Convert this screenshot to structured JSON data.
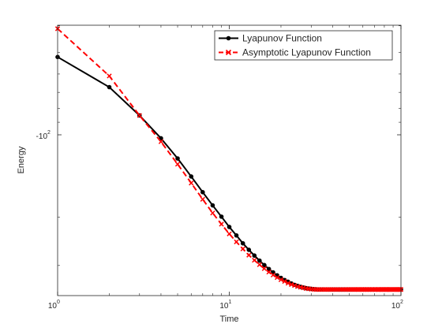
{
  "chart_data": {
    "type": "line",
    "xlabel": "Time",
    "ylabel": "Energy",
    "x_scale": "log",
    "y_scale": "log-negative",
    "xlim": [
      1,
      100
    ],
    "x_ticks": [
      {
        "value": 1,
        "base": "10",
        "exp": "0"
      },
      {
        "value": 10,
        "base": "10",
        "exp": "1"
      },
      {
        "value": 100,
        "base": "10",
        "exp": "2"
      }
    ],
    "y_ticks": [
      {
        "value": -100,
        "base": "-10",
        "exp": "2"
      }
    ],
    "legend_position": "top-right",
    "grid": false,
    "series": [
      {
        "name": "Lyapunov Function",
        "color": "#000000",
        "line_style": "solid",
        "marker": "dot",
        "x": [
          1,
          2,
          3,
          4,
          5,
          6,
          7,
          8,
          9,
          10,
          11,
          12,
          13,
          14,
          15,
          16,
          17,
          18,
          19,
          20,
          21,
          22,
          23,
          24,
          25,
          26,
          27,
          28,
          29,
          30,
          31,
          32,
          33,
          34,
          35,
          36,
          37,
          38,
          39,
          40,
          41,
          42,
          43,
          44,
          45,
          46,
          47,
          48,
          49,
          50,
          51,
          52,
          53,
          54,
          55,
          56,
          57,
          58,
          59,
          60,
          61,
          62,
          63,
          64,
          65,
          66,
          67,
          68,
          69,
          70,
          71,
          72,
          73,
          74,
          75,
          76,
          77,
          78,
          79,
          80,
          81,
          82,
          83,
          84,
          85,
          86,
          87,
          88,
          89,
          90,
          91,
          92,
          93,
          94,
          95,
          96,
          97,
          98,
          99,
          100
        ],
        "y": [
          -52,
          -67,
          -85,
          -103,
          -122,
          -142,
          -162,
          -181,
          -199,
          -217,
          -233,
          -249,
          -263,
          -276,
          -288,
          -299,
          -309,
          -318,
          -326,
          -333,
          -339,
          -344,
          -349,
          -353,
          -356,
          -359,
          -361,
          -363,
          -364,
          -365,
          -366,
          -366.5,
          -367,
          -367,
          -367,
          -367,
          -367,
          -367,
          -367,
          -367,
          -367,
          -367,
          -367,
          -367,
          -367,
          -367,
          -367,
          -367,
          -367,
          -367,
          -367,
          -367,
          -367,
          -367,
          -367,
          -367,
          -367,
          -367,
          -367,
          -367,
          -367,
          -367,
          -367,
          -367,
          -367,
          -367,
          -367,
          -367,
          -367,
          -367,
          -367,
          -367,
          -367,
          -367,
          -367,
          -367,
          -367,
          -367,
          -367,
          -367,
          -367,
          -367,
          -367,
          -367,
          -367,
          -367,
          -367,
          -367,
          -367,
          -367,
          -367,
          -367,
          -367,
          -367,
          -367,
          -367,
          -367,
          -367,
          -367,
          -367
        ]
      },
      {
        "name": "Asymptotic Lyapunov Function",
        "color": "#ff0000",
        "line_style": "dashed",
        "marker": "x",
        "x": [
          1,
          2,
          3,
          4,
          5,
          6,
          7,
          8,
          9,
          10,
          11,
          12,
          13,
          14,
          15,
          16,
          17,
          18,
          19,
          20,
          21,
          22,
          23,
          24,
          25,
          26,
          27,
          28,
          29,
          30,
          31,
          32,
          33,
          34,
          35,
          36,
          37,
          38,
          39,
          40,
          41,
          42,
          43,
          44,
          45,
          46,
          47,
          48,
          49,
          50,
          51,
          52,
          53,
          54,
          55,
          56,
          57,
          58,
          59,
          60,
          61,
          62,
          63,
          64,
          65,
          66,
          67,
          68,
          69,
          70,
          71,
          72,
          73,
          74,
          75,
          76,
          77,
          78,
          79,
          80,
          81,
          82,
          83,
          84,
          85,
          86,
          87,
          88,
          89,
          90,
          91,
          92,
          93,
          94,
          95,
          96,
          97,
          98,
          99,
          100
        ],
        "y": [
          -41,
          -61,
          -85,
          -106,
          -128,
          -150,
          -172,
          -193,
          -212,
          -230,
          -246,
          -261,
          -275,
          -287,
          -298,
          -308,
          -317,
          -325,
          -332,
          -338,
          -343,
          -348,
          -352,
          -355,
          -358,
          -360,
          -362,
          -364,
          -365,
          -366,
          -366.5,
          -367,
          -367,
          -367,
          -367,
          -367,
          -367,
          -367,
          -367,
          -367,
          -367,
          -367,
          -367,
          -367,
          -367,
          -367,
          -367,
          -367,
          -367,
          -367,
          -367,
          -367,
          -367,
          -367,
          -367,
          -367,
          -367,
          -367,
          -367,
          -367,
          -367,
          -367,
          -367,
          -367,
          -367,
          -367,
          -367,
          -367,
          -367,
          -367,
          -367,
          -367,
          -367,
          -367,
          -367,
          -367,
          -367,
          -367,
          -367,
          -367,
          -367,
          -367,
          -367,
          -367,
          -367,
          -367,
          -367,
          -367,
          -367,
          -367,
          -367,
          -367,
          -367,
          -367,
          -367,
          -367,
          -367,
          -367,
          -367,
          -367
        ]
      }
    ]
  }
}
